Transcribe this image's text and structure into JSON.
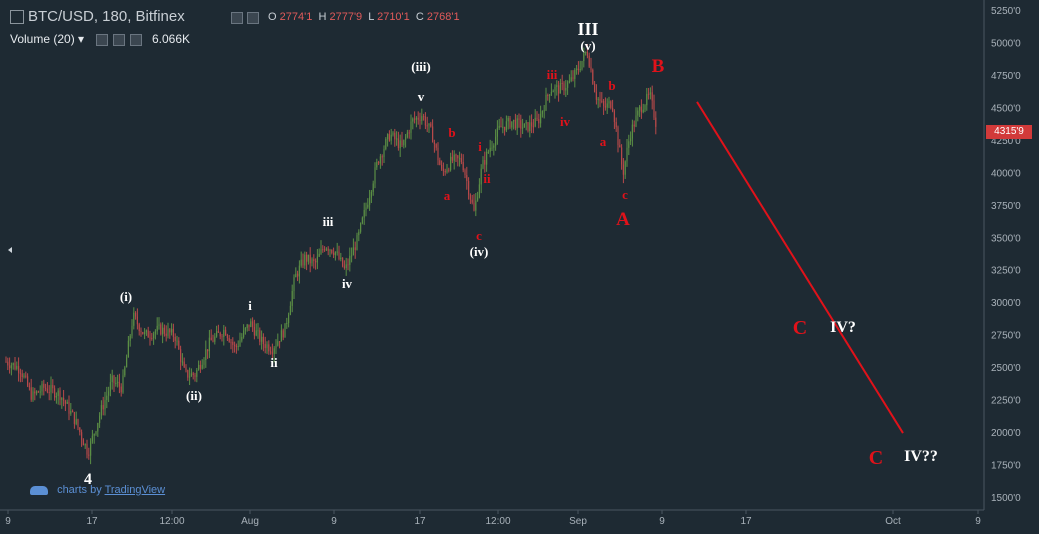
{
  "header": {
    "symbol": "BTC/USD, 180, Bitfinex",
    "o_label": "O",
    "o_value": "2774'1",
    "h_label": "H",
    "h_value": "2777'9",
    "l_label": "L",
    "l_value": "2710'1",
    "c_label": "C",
    "c_value": "2768'1"
  },
  "volume": {
    "label": "Volume (20)",
    "value": "6.066K"
  },
  "watermark": {
    "prefix": "charts by",
    "brand": "TradingView"
  },
  "last_price": "4315'9",
  "colors": {
    "background": "#1e2a33",
    "up": "#5b8f45",
    "down": "#b8494a",
    "accent_red": "#e0121a",
    "wave_white": "#ffffff"
  },
  "chart_data": {
    "type": "candlestick",
    "price_axis": [
      "5250'0",
      "5000'0",
      "4750'0",
      "4500'0",
      "4250'0",
      "4000'0",
      "3750'0",
      "3500'0",
      "3250'0",
      "3000'0",
      "2750'0",
      "2500'0",
      "2250'0",
      "2000'0",
      "1750'0",
      "1500'0"
    ],
    "ylim": [
      1400,
      5400
    ],
    "time_axis": [
      "9",
      "17",
      "12:00",
      "Aug",
      "9",
      "17",
      "12:00",
      "Sep",
      "9",
      "17",
      "Oct",
      "9"
    ],
    "waves_white": [
      "4",
      "(i)",
      "(ii)",
      "i",
      "ii",
      "iii",
      "iv",
      "(iii)",
      "v",
      "(iv)",
      "III",
      "(v)",
      "IV?",
      "IV??"
    ],
    "waves_red": [
      "b",
      "a",
      "i",
      "ii",
      "c",
      "iii",
      "iv",
      "b",
      "a",
      "c",
      "B",
      "A",
      "C",
      "C"
    ],
    "projection": [
      {
        "date": "Sep 13",
        "price": 4550
      },
      {
        "date": "Oct 2",
        "price": 2000
      }
    ]
  }
}
